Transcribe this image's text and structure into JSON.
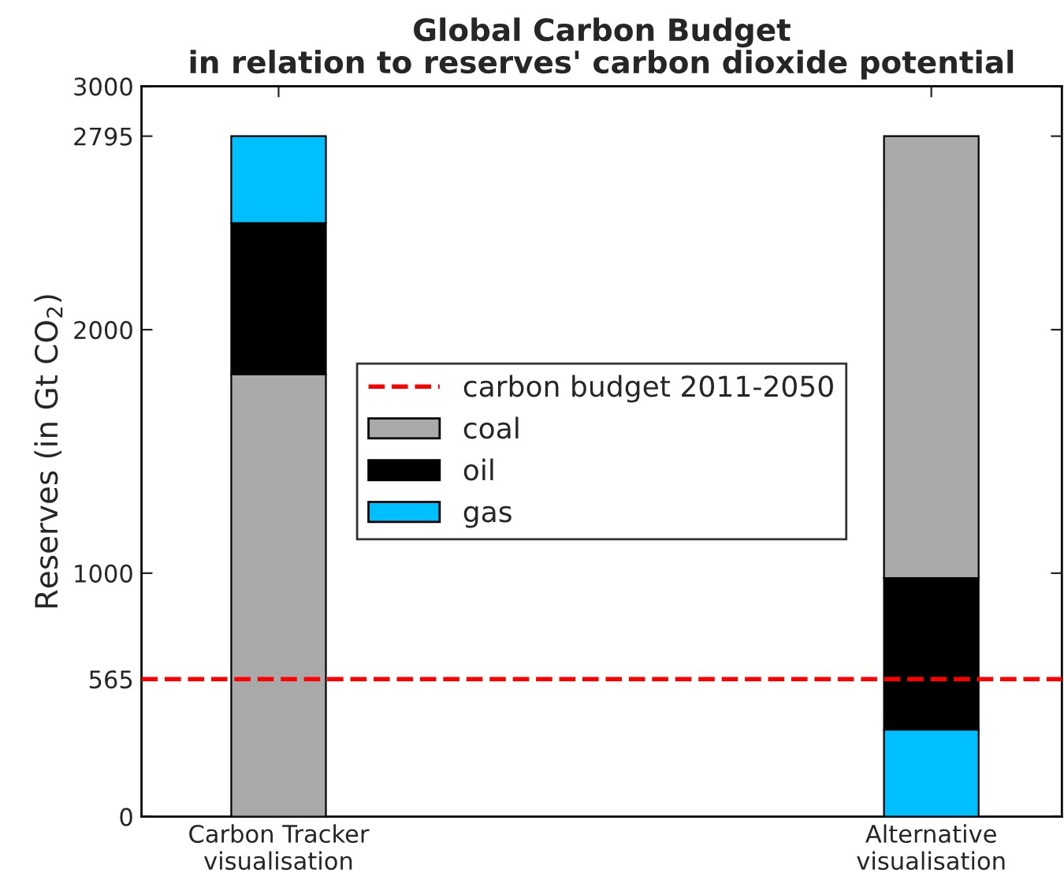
{
  "chart_data": {
    "type": "bar",
    "title": "Global Carbon Budget\nin relation to reserves' carbon dioxide potential",
    "ylabel": "Reserves (in Gt CO$_{2}$)",
    "categories": [
      "Carbon Tracker\nvisualisation",
      "Alternative\nvisualisation"
    ],
    "series": [
      {
        "name": "coal",
        "color": "#a9a9a9",
        "values": [
          1817,
          1815
        ],
        "base": [
          0,
          980
        ]
      },
      {
        "name": "oil",
        "color": "#000000",
        "values": [
          621,
          623
        ],
        "base": [
          1817,
          357
        ]
      },
      {
        "name": "gas",
        "color": "#00bfff",
        "values": [
          357,
          357
        ],
        "base": [
          2438,
          0
        ]
      }
    ],
    "ylim": [
      0,
      3000
    ],
    "yticks": [
      0,
      565,
      1000,
      2000,
      2795,
      3000
    ],
    "ref_lines": [
      {
        "axis": "y",
        "value": 565,
        "label": "carbon budget 2011-2050",
        "color": "#ff0000",
        "line_style": "dashed"
      }
    ],
    "legend": "center",
    "grid": false
  }
}
